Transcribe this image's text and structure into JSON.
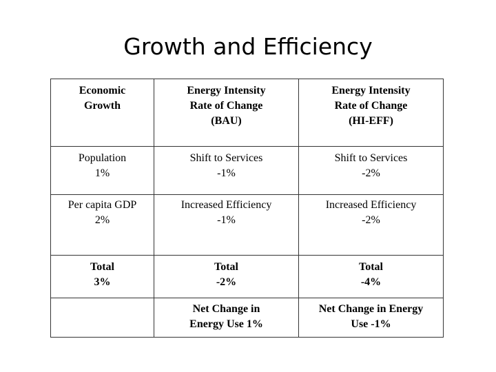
{
  "title": "Growth and Efficiency",
  "table": {
    "header": {
      "col1": [
        "Economic",
        "Growth"
      ],
      "col2": [
        "Energy Intensity",
        "Rate of Change",
        "(BAU)"
      ],
      "col3": [
        "Energy Intensity",
        "Rate of Change",
        "(HI-EFF)"
      ]
    },
    "rows": [
      {
        "col1": [
          "Population",
          "1%"
        ],
        "col2": [
          "Shift to Services",
          "-1%"
        ],
        "col3": [
          "Shift to Services",
          "-2%"
        ]
      },
      {
        "col1": [
          "Per capita GDP",
          "2%"
        ],
        "col2": [
          "Increased Efficiency",
          "-1%"
        ],
        "col3": [
          "Increased Efficiency",
          "-2%"
        ]
      }
    ],
    "totals": {
      "col1": [
        "Total",
        "3%"
      ],
      "col2": [
        "Total",
        "-2%"
      ],
      "col3": [
        "Total",
        "-4%"
      ]
    },
    "net_change": {
      "col2": [
        "Net Change in",
        "Energy Use 1%"
      ],
      "col3": [
        "Net Change in Energy",
        "Use -1%"
      ]
    }
  }
}
